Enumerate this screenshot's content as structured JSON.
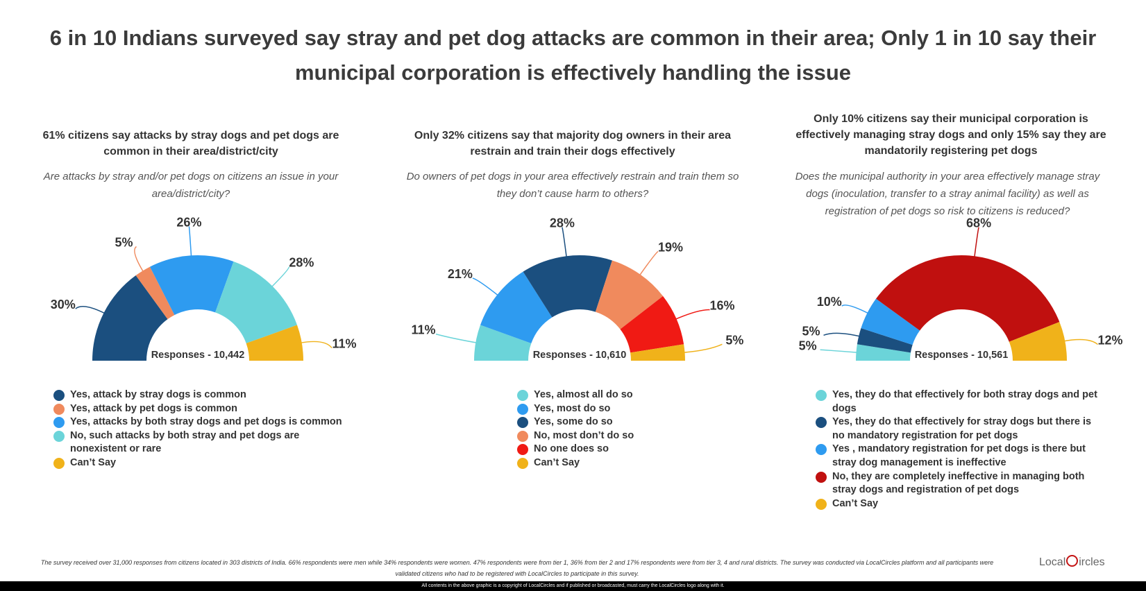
{
  "title": "6 in 10 Indians surveyed say stray and pet dog attacks are common in their area; Only 1 in 10 say their municipal corporation is effectively handling the issue",
  "chart_data": [
    {
      "type": "pie",
      "title": "61% citizens say attacks by stray dogs and pet dogs are common in their area/district/city",
      "question": "Are attacks by stray and/or pet dogs on citizens an issue in your area/district/city?",
      "responses_label": "Responses - 10,442",
      "categories": [
        "Yes, attack by stray dogs is common",
        "Yes, attack by pet dogs is common",
        "Yes, attacks by both stray dogs and pet dogs is common",
        "No, such attacks by both stray and pet dogs are nonexistent or rare",
        "Can’t Say"
      ],
      "values": [
        30,
        5,
        26,
        28,
        11
      ],
      "value_labels": [
        "30%",
        "5%",
        "26%",
        "28%",
        "11%"
      ],
      "colors": [
        "#1b4f7f",
        "#f08a5d",
        "#2e9bf0",
        "#6bd4d9",
        "#f0b21a"
      ],
      "legend": "bottom"
    },
    {
      "type": "pie",
      "title": "Only 32% citizens say that majority dog owners in their area restrain and train their dogs effectively",
      "question": "Do owners of pet dogs in your area effectively restrain and train them so they don’t cause harm to others?",
      "responses_label": "Responses - 10,610",
      "categories": [
        "Yes, almost all do so",
        "Yes, most do so",
        "Yes, some do so",
        "No, most don’t do so",
        "No one does so",
        "Can’t Say"
      ],
      "values": [
        11,
        21,
        28,
        19,
        16,
        5
      ],
      "value_labels": [
        "11%",
        "21%",
        "28%",
        "19%",
        "16%",
        "5%"
      ],
      "colors": [
        "#6bd4d9",
        "#2e9bf0",
        "#1b4f7f",
        "#f08a5d",
        "#f01a14",
        "#f0b21a"
      ],
      "legend": "bottom"
    },
    {
      "type": "pie",
      "title": "Only 10% citizens say their municipal corporation is effectively managing stray dogs and only 15% say they are mandatorily registering pet dogs",
      "question": "Does the municipal authority in your area effectively manage stray dogs (inoculation, transfer to a stray animal facility) as well as registration of pet dogs so risk to citizens is reduced?",
      "responses_label": "Responses - 10,561",
      "categories": [
        "Yes, they do that effectively for both stray dogs and pet dogs",
        "Yes, they do that effectively for stray dogs but there is no mandatory registration for pet dogs",
        "Yes , mandatory registration for pet dogs is there but stray dog management is ineffective",
        "No, they are completely ineffective in managing both stray dogs and registration of pet dogs",
        "Can’t Say"
      ],
      "values": [
        5,
        5,
        10,
        68,
        12
      ],
      "value_labels": [
        "5%",
        "5%",
        "10%",
        "68%",
        "12%"
      ],
      "colors": [
        "#6bd4d9",
        "#1b4f7f",
        "#2e9bf0",
        "#c0100f",
        "#f0b21a"
      ],
      "legend": "bottom"
    }
  ],
  "footer": {
    "note": "The survey received over 31,000 responses from citizens located in 303 districts of India. 66% respondents were men while 34% respondents were women. 47% respondents were from tier 1, 36% from tier 2 and 17% respondents were from tier 3, 4 and rural districts. The survey was conducted via LocalCircles platform and all participants were validated citizens who had to be registered with LocalCircles to participate in this survey.",
    "brand_left": "Local",
    "brand_right": "ircles",
    "copyright": "All contents in the above graphic is a copyright of LocalCircles and if published or broadcasted, must carry the LocalCircles logo along with it."
  }
}
